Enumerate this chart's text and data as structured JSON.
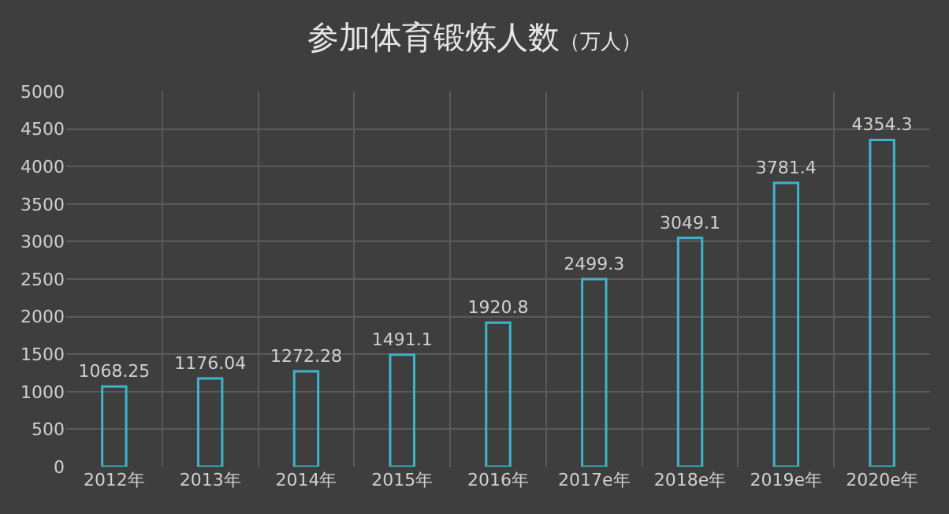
{
  "chart_data": {
    "type": "bar",
    "title": "参加体育锻炼人数",
    "subtitle": "（万人）",
    "categories": [
      "2012年",
      "2013年",
      "2014年",
      "2015年",
      "2016年",
      "2017e年",
      "2018e年",
      "2019e年",
      "2020e年"
    ],
    "values": [
      1068.25,
      1176.04,
      1272.28,
      1491.1,
      1920.8,
      2499.3,
      3049.1,
      3781.4,
      4354.3
    ],
    "color": "#3fb3cc",
    "ylim": [
      0,
      5000
    ],
    "yticks": [
      0,
      500,
      1000,
      1500,
      2000,
      2500,
      3000,
      3500,
      4000,
      4500,
      5000
    ],
    "grid": true,
    "data_labels": true,
    "legend": false
  }
}
